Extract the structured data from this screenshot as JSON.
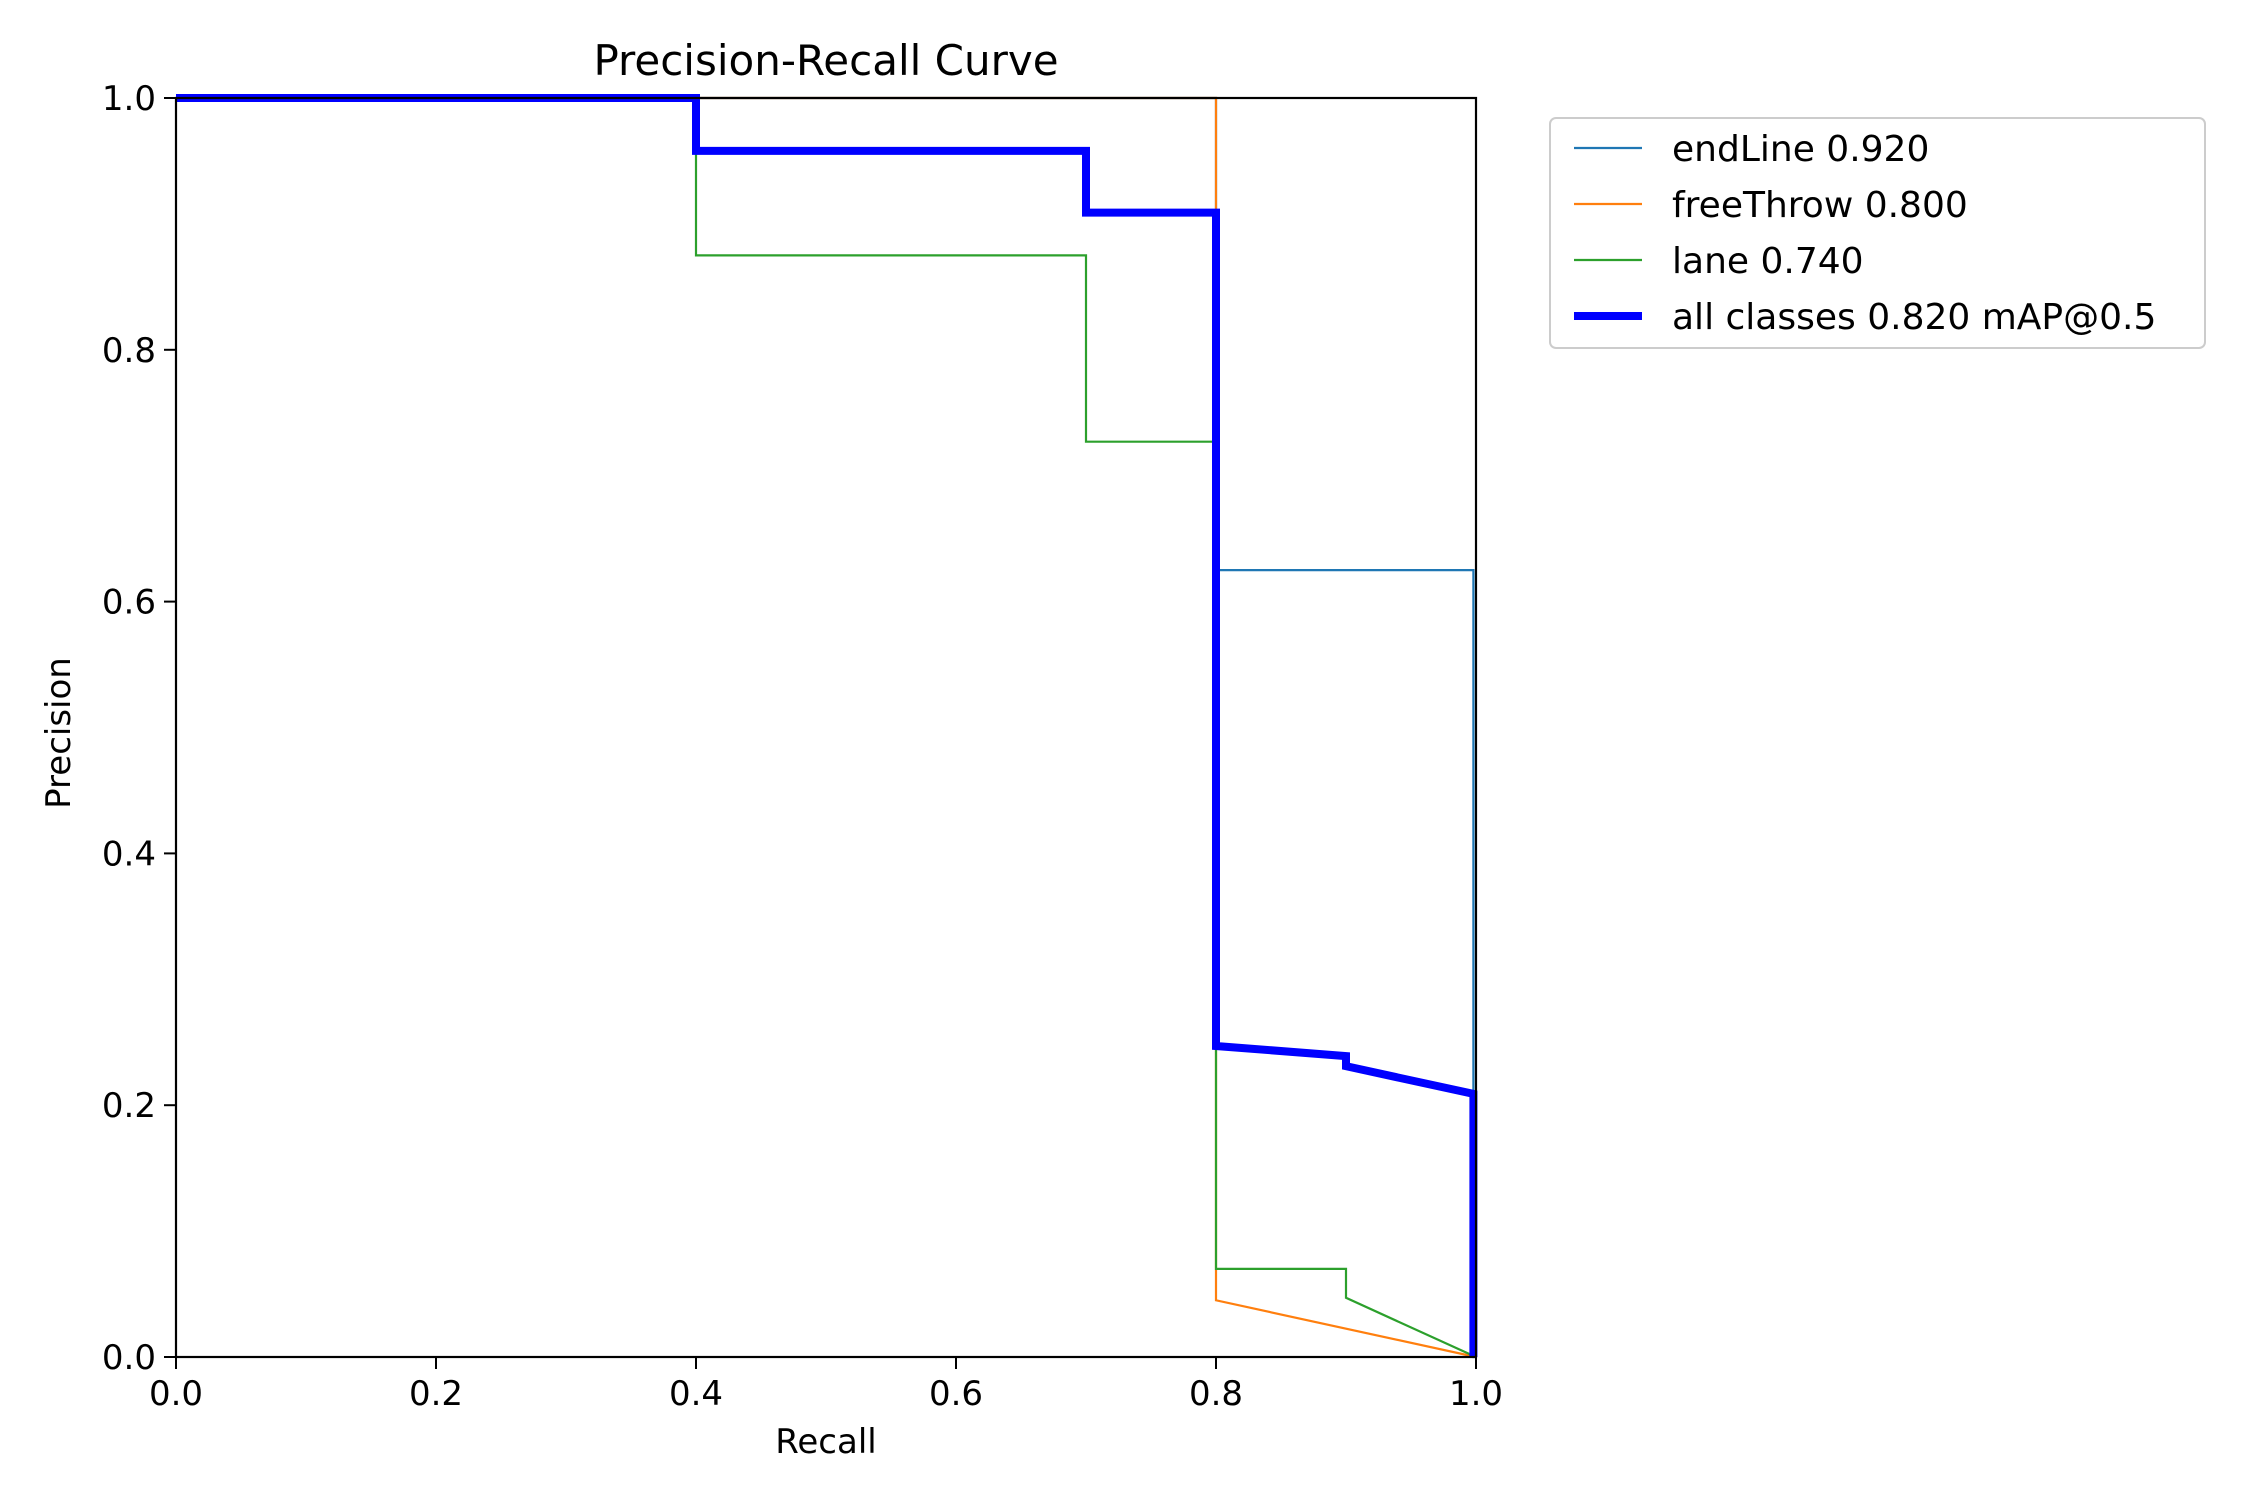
{
  "chart_data": {
    "type": "line",
    "title": "Precision-Recall Curve",
    "xlabel": "Recall",
    "ylabel": "Precision",
    "xlim": [
      0,
      1
    ],
    "ylim": [
      0,
      1
    ],
    "x_ticks": [
      0.0,
      0.2,
      0.4,
      0.6,
      0.8,
      1.0
    ],
    "y_ticks": [
      0.0,
      0.2,
      0.4,
      0.6,
      0.8,
      1.0
    ],
    "x_tick_labels": [
      "0.0",
      "0.2",
      "0.4",
      "0.6",
      "0.8",
      "1.0"
    ],
    "y_tick_labels": [
      "0.0",
      "0.2",
      "0.4",
      "0.6",
      "0.8",
      "1.0"
    ],
    "grid": false,
    "legend_position": "outside-top-right",
    "series": [
      {
        "name": "endLine 0.920",
        "color": "#1f77b4",
        "style": "thin",
        "x": [
          0,
          0.4,
          0.4,
          0.7,
          0.7,
          0.8,
          0.8,
          0.998,
          0.998,
          1.0
        ],
        "y": [
          1.0,
          1.0,
          1.0,
          1.0,
          1.0,
          1.0,
          0.625,
          0.625,
          0.0,
          0.0
        ]
      },
      {
        "name": "freeThrow 0.800",
        "color": "#ff7f0e",
        "style": "thin",
        "x": [
          0,
          0.8,
          0.8,
          0.8,
          1.0
        ],
        "y": [
          1.0,
          1.0,
          0.045,
          0.045,
          0.0
        ]
      },
      {
        "name": "lane 0.740",
        "color": "#2ca02c",
        "style": "thin",
        "x": [
          0,
          0.4,
          0.4,
          0.7,
          0.7,
          0.8,
          0.8,
          0.8,
          0.9,
          0.9,
          1.0
        ],
        "y": [
          1.0,
          1.0,
          0.875,
          0.875,
          0.727,
          0.727,
          0.25,
          0.07,
          0.07,
          0.047,
          0.0
        ]
      },
      {
        "name": "all classes 0.820 mAP@0.5",
        "color": "#0000ff",
        "style": "thick",
        "x": [
          0,
          0.4,
          0.4,
          0.7,
          0.7,
          0.8,
          0.8,
          0.9,
          0.9,
          0.998,
          0.998
        ],
        "y": [
          1.0,
          1.0,
          0.958,
          0.958,
          0.909,
          0.909,
          0.247,
          0.239,
          0.231,
          0.209,
          0.0
        ]
      }
    ]
  }
}
